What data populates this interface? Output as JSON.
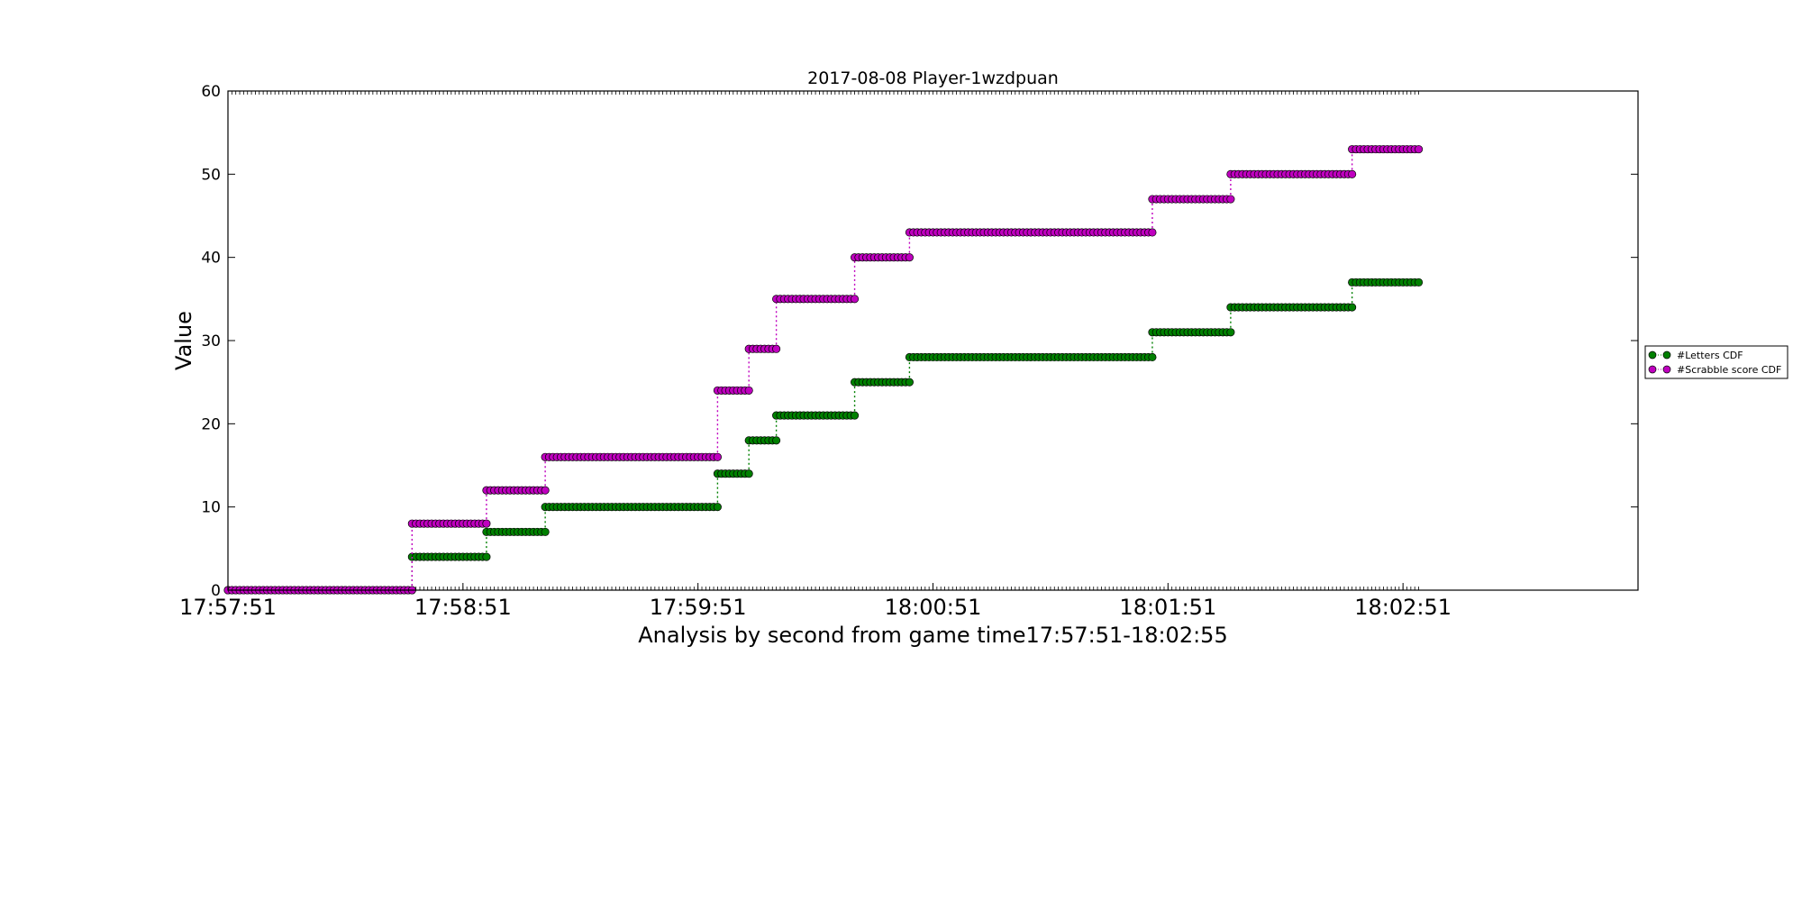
{
  "chart_data": {
    "type": "scatter",
    "title": "2017-08-08 Player-1wzdpuan",
    "xlabel": "Analysis by second from game time17:57:51-18:02:55",
    "ylabel": "Value",
    "x_unit": "time of day (HH:MM:SS)",
    "xlim": [
      "17:57:51",
      "18:03:51"
    ],
    "ylim": [
      0,
      60
    ],
    "xticks": [
      "17:57:51",
      "17:58:51",
      "17:59:51",
      "18:00:51",
      "18:01:51",
      "18:02:51"
    ],
    "yticks": [
      0,
      10,
      20,
      30,
      40,
      50,
      60
    ],
    "grid": false,
    "legend_position": "outside right",
    "marker": "circle",
    "connector": "dotted",
    "series": [
      {
        "name": "#Letters CDF",
        "color": "#008000",
        "points": [
          {
            "x_start": "17:57:51",
            "x_end": "17:58:38",
            "y": 0
          },
          {
            "x_start": "17:58:38",
            "x_end": "17:58:57",
            "y": 4
          },
          {
            "x_start": "17:58:57",
            "x_end": "17:59:12",
            "y": 7
          },
          {
            "x_start": "17:59:12",
            "x_end": "17:59:56",
            "y": 10
          },
          {
            "x_start": "17:59:56",
            "x_end": "18:00:04",
            "y": 14
          },
          {
            "x_start": "18:00:04",
            "x_end": "18:00:11",
            "y": 18
          },
          {
            "x_start": "18:00:11",
            "x_end": "18:00:31",
            "y": 21
          },
          {
            "x_start": "18:00:31",
            "x_end": "18:00:45",
            "y": 25
          },
          {
            "x_start": "18:00:45",
            "x_end": "18:01:47",
            "y": 28
          },
          {
            "x_start": "18:01:47",
            "x_end": "18:02:07",
            "y": 31
          },
          {
            "x_start": "18:02:07",
            "x_end": "18:02:38",
            "y": 34
          },
          {
            "x_start": "18:02:38",
            "x_end": "18:02:55",
            "y": 37
          }
        ]
      },
      {
        "name": "#Scrabble score CDF",
        "color": "#bf00bf",
        "points": [
          {
            "x_start": "17:57:51",
            "x_end": "17:58:38",
            "y": 0
          },
          {
            "x_start": "17:58:38",
            "x_end": "17:58:57",
            "y": 8
          },
          {
            "x_start": "17:58:57",
            "x_end": "17:59:12",
            "y": 12
          },
          {
            "x_start": "17:59:12",
            "x_end": "17:59:56",
            "y": 16
          },
          {
            "x_start": "17:59:56",
            "x_end": "18:00:04",
            "y": 24
          },
          {
            "x_start": "18:00:04",
            "x_end": "18:00:11",
            "y": 29
          },
          {
            "x_start": "18:00:11",
            "x_end": "18:00:31",
            "y": 35
          },
          {
            "x_start": "18:00:31",
            "x_end": "18:00:45",
            "y": 40
          },
          {
            "x_start": "18:00:45",
            "x_end": "18:01:47",
            "y": 43
          },
          {
            "x_start": "18:01:47",
            "x_end": "18:02:07",
            "y": 47
          },
          {
            "x_start": "18:02:07",
            "x_end": "18:02:38",
            "y": 50
          },
          {
            "x_start": "18:02:38",
            "x_end": "18:02:55",
            "y": 53
          }
        ]
      }
    ]
  }
}
